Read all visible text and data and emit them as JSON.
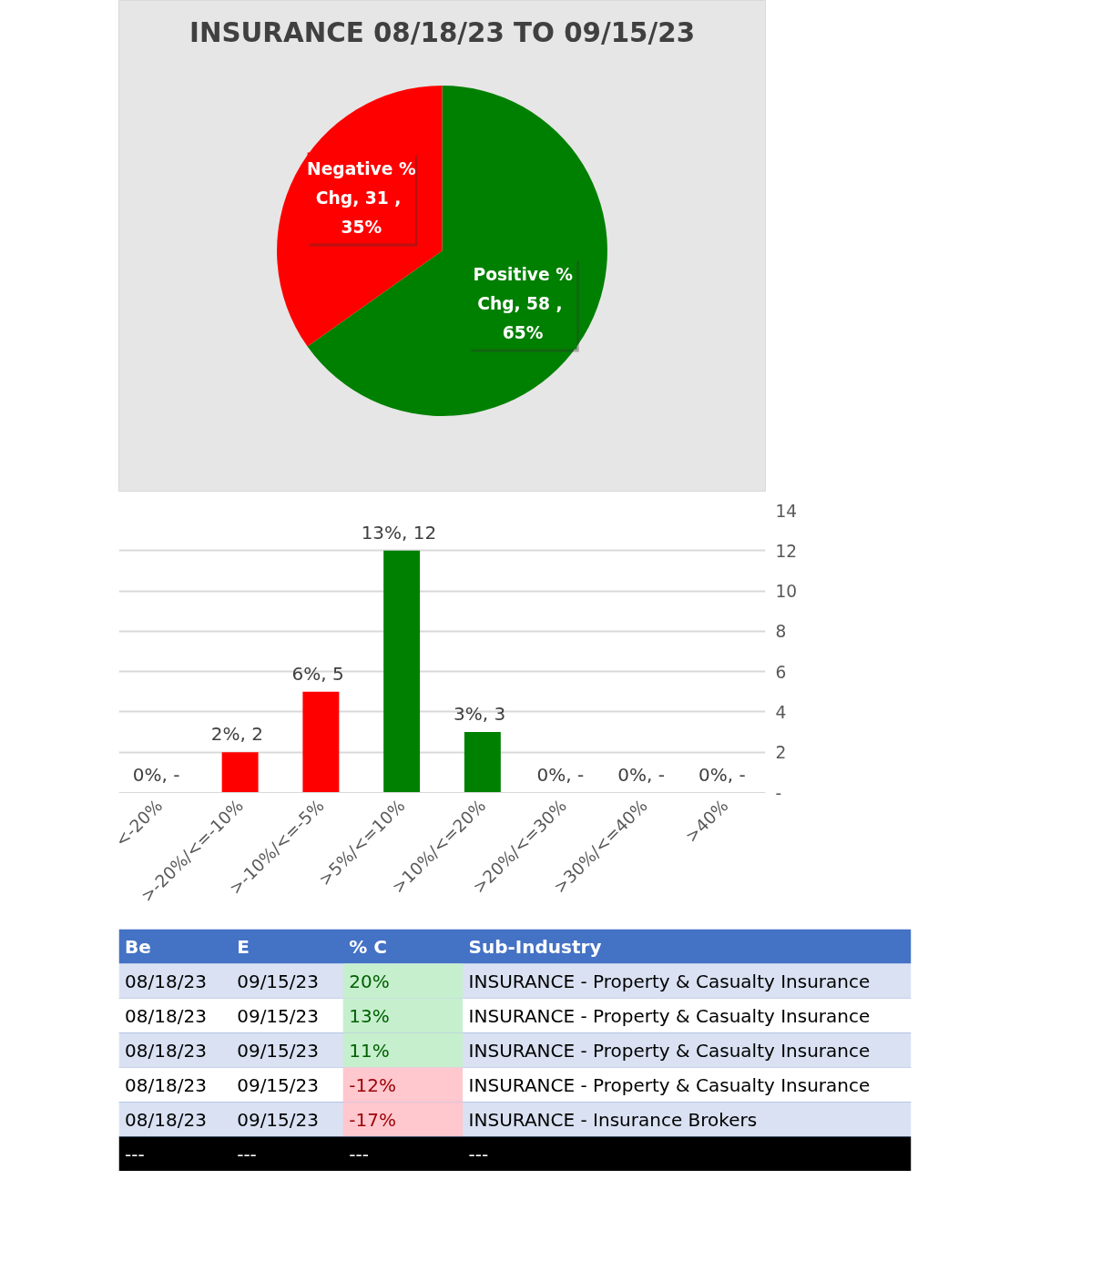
{
  "chart_data": [
    {
      "type": "pie",
      "title": "INSURANCE 08/18/23 TO 09/15/23",
      "categories": [
        "Positive % Chg",
        "Negative % Chg"
      ],
      "values": [
        58,
        31
      ],
      "value_labels": [
        "58 , 65%",
        "31 , 35%"
      ],
      "colors": [
        "#008000",
        "#ff0000"
      ]
    },
    {
      "type": "bar",
      "categories": [
        "<-20%",
        ">-20%/<=-10%",
        ">-10%/<=-5%",
        ">5%/<=10%",
        ">10%/<=20%",
        ">20%/<=30%",
        ">30%/<=40%",
        ">40%"
      ],
      "values": [
        0,
        2,
        5,
        12,
        3,
        0,
        0,
        0
      ],
      "value_labels": [
        "0%,  -",
        "2%,  2",
        "6%,  5",
        "13%,  12",
        "3%,  3",
        "0%,  -",
        "0%,  -",
        "0%,  -"
      ],
      "colors": [
        "#ff0000",
        "#ff0000",
        "#ff0000",
        "#008000",
        "#008000",
        "#008000",
        "#008000",
        "#008000"
      ],
      "ylim": [
        0,
        14
      ],
      "yticks": [
        {
          "value": 0,
          "label": "-"
        },
        2,
        4,
        6,
        8,
        10,
        12,
        14
      ],
      "grid": "y"
    },
    {
      "type": "other",
      "categories": [
        "Be",
        "E",
        "% C",
        "Sub-Industry"
      ],
      "cells": [
        [
          "08/18/23",
          "09/15/23",
          "20%",
          "INSURANCE - Property & Casualty Insurance"
        ],
        [
          "08/18/23",
          "09/15/23",
          "13%",
          "INSURANCE - Property & Casualty Insurance"
        ],
        [
          "08/18/23",
          "09/15/23",
          "11%",
          "INSURANCE - Property & Casualty Insurance"
        ],
        [
          "08/18/23",
          "09/15/23",
          "-12%",
          "INSURANCE - Property & Casualty Insurance"
        ],
        [
          "08/18/23",
          "09/15/23",
          "-17%",
          "INSURANCE - Insurance Brokers"
        ],
        [
          "---",
          "---",
          "---",
          "---"
        ]
      ],
      "colors": [
        "#4472c4",
        "#c6efce",
        "#c6efce",
        "#c6efce",
        "#ffc7ce",
        "#ffc7ce",
        "#000000"
      ]
    }
  ]
}
